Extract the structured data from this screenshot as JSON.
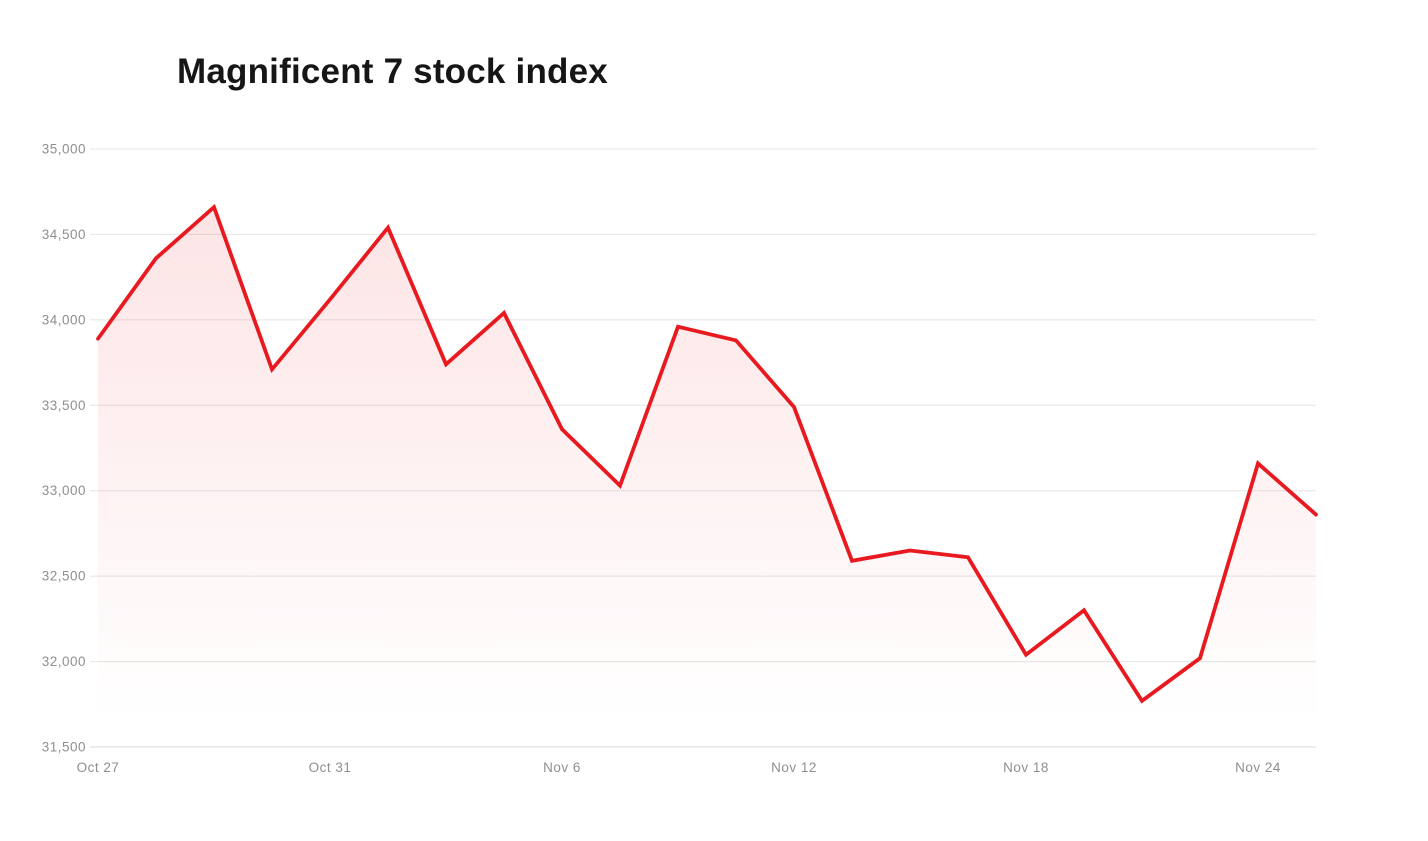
{
  "chart_data": {
    "type": "area",
    "title": "Magnificent 7 stock index",
    "x": [
      "Oct 27",
      "Oct 28",
      "Oct 29",
      "Oct 30",
      "Oct 31",
      "Nov 3",
      "Nov 4",
      "Nov 5",
      "Nov 6",
      "Nov 7",
      "Nov 10",
      "Nov 11",
      "Nov 12",
      "Nov 13",
      "Nov 14",
      "Nov 17",
      "Nov 18",
      "Nov 19",
      "Nov 20",
      "Nov 21",
      "Nov 24",
      "Nov 25"
    ],
    "values": [
      33890,
      34360,
      34660,
      33710,
      34120,
      34540,
      33740,
      34040,
      33360,
      33030,
      33960,
      33880,
      33490,
      32590,
      32650,
      32610,
      32040,
      32300,
      31770,
      32020,
      33160,
      32860
    ],
    "x_tick_indices": [
      0,
      4,
      8,
      12,
      16,
      20
    ],
    "x_tick_labels": [
      "Oct 27",
      "Oct 31",
      "Nov 6",
      "Nov 12",
      "Nov 18",
      "Nov 24"
    ],
    "y_ticks": [
      31500,
      32000,
      32500,
      33000,
      33500,
      34000,
      34500,
      35000
    ],
    "y_tick_labels": [
      "31,500",
      "32,000",
      "32,500",
      "33,000",
      "33,500",
      "34,000",
      "34,500",
      "35,000"
    ],
    "ylim": [
      31500,
      35000
    ],
    "grid": true,
    "legend": "none",
    "colors": {
      "line": "#e8191f",
      "fill_top": "rgba(237,28,36,0.13)",
      "fill_bottom": "rgba(237,28,36,0)",
      "gridline": "#e4e4e4",
      "axis_line": "#d8d8d8",
      "tick_text": "#8f8f8f",
      "title_text": "#161616",
      "background": "#ffffff"
    }
  }
}
